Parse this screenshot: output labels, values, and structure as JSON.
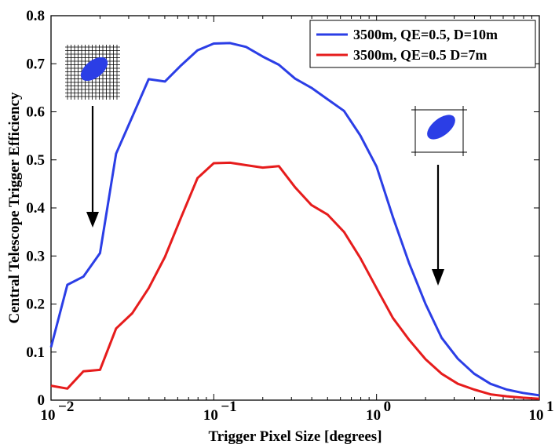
{
  "chart_data": {
    "type": "line",
    "title": "",
    "xlabel": "Trigger Pixel Size [degrees]",
    "ylabel": "Central Telescope Trigger Efficiency",
    "x_scale": "log",
    "xlim": [
      0.01,
      10
    ],
    "ylim": [
      0,
      0.8
    ],
    "x_ticks": [
      {
        "value": 0.01,
        "base": "10",
        "exp": "−2"
      },
      {
        "value": 0.1,
        "base": "10",
        "exp": "−1"
      },
      {
        "value": 1,
        "base": "10",
        "exp": "0"
      },
      {
        "value": 10,
        "base": "10",
        "exp": "1"
      }
    ],
    "y_ticks": [
      0,
      0.1,
      0.2,
      0.3,
      0.4,
      0.5,
      0.6,
      0.7,
      0.8
    ],
    "y_tick_labels": [
      "0",
      "0.1",
      "0.2",
      "0.3",
      "0.4",
      "0.5",
      "0.6",
      "0.7",
      "0.8"
    ],
    "grid": false,
    "legend_position": "top-right",
    "series": [
      {
        "name": "3500m, QE=0.5, D=10m",
        "color": "#2b3ee6",
        "x": [
          0.01,
          0.0126,
          0.0158,
          0.02,
          0.0251,
          0.0316,
          0.0398,
          0.0501,
          0.0631,
          0.0794,
          0.1,
          0.126,
          0.158,
          0.2,
          0.251,
          0.316,
          0.398,
          0.501,
          0.631,
          0.794,
          1.0,
          1.26,
          1.58,
          2.0,
          2.51,
          3.16,
          3.98,
          5.01,
          6.31,
          7.94,
          10.0
        ],
        "y": [
          0.11,
          0.24,
          0.257,
          0.306,
          0.513,
          0.59,
          0.668,
          0.663,
          0.697,
          0.728,
          0.742,
          0.743,
          0.735,
          0.715,
          0.698,
          0.669,
          0.65,
          0.626,
          0.602,
          0.551,
          0.486,
          0.381,
          0.286,
          0.2,
          0.13,
          0.086,
          0.055,
          0.034,
          0.022,
          0.015,
          0.01
        ]
      },
      {
        "name": "3500m, QE=0.5 D=7m",
        "color": "#e61c1c",
        "x": [
          0.01,
          0.0126,
          0.0158,
          0.02,
          0.0251,
          0.0316,
          0.0398,
          0.0501,
          0.0631,
          0.0794,
          0.1,
          0.126,
          0.158,
          0.2,
          0.251,
          0.316,
          0.398,
          0.501,
          0.631,
          0.794,
          1.0,
          1.26,
          1.58,
          2.0,
          2.51,
          3.16,
          3.98,
          5.01,
          6.31,
          7.94,
          10.0
        ],
        "y": [
          0.03,
          0.024,
          0.06,
          0.063,
          0.149,
          0.181,
          0.233,
          0.298,
          0.381,
          0.462,
          0.493,
          0.494,
          0.489,
          0.484,
          0.487,
          0.443,
          0.406,
          0.386,
          0.35,
          0.296,
          0.233,
          0.171,
          0.126,
          0.085,
          0.055,
          0.034,
          0.022,
          0.012,
          0.008,
          0.005,
          0.003
        ]
      }
    ]
  },
  "insets": [
    {
      "name": "fine-grid-pixel-camera",
      "description_icon": "ellipse-on-fine-grid",
      "ellipse_color": "#2b3ee6"
    },
    {
      "name": "coarse-pixel-camera",
      "description_icon": "ellipse-in-single-pixel",
      "ellipse_color": "#2b3ee6"
    }
  ],
  "arrow_color": "#000000"
}
